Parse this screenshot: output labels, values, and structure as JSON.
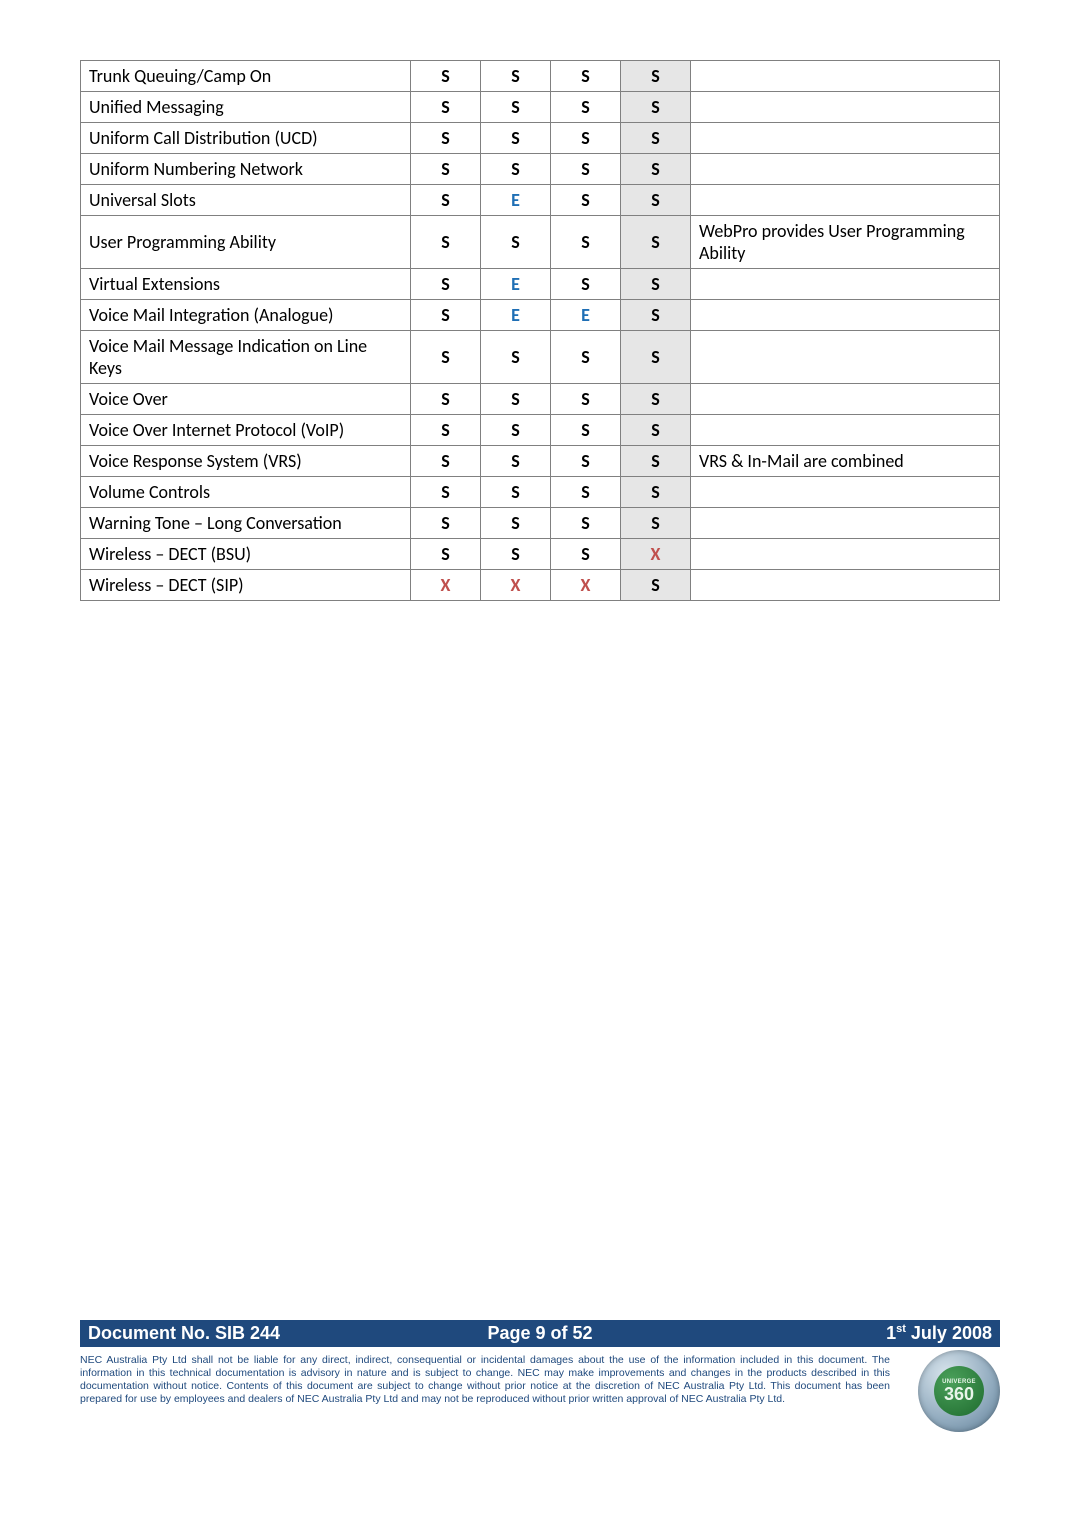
{
  "table": {
    "rows": [
      {
        "label": "Trunk Queuing/Camp On",
        "c1": "S",
        "c2": "S",
        "c3": "S",
        "c4": "S",
        "notes": ""
      },
      {
        "label": "Unified Messaging",
        "c1": "S",
        "c2": "S",
        "c3": "S",
        "c4": "S",
        "notes": ""
      },
      {
        "label": "Uniform Call Distribution (UCD)",
        "c1": "S",
        "c2": "S",
        "c3": "S",
        "c4": "S",
        "notes": ""
      },
      {
        "label": "Uniform Numbering Network",
        "c1": "S",
        "c2": "S",
        "c3": "S",
        "c4": "S",
        "notes": ""
      },
      {
        "label": "Universal Slots",
        "c1": "S",
        "c2": "E",
        "c3": "S",
        "c4": "S",
        "notes": ""
      },
      {
        "label": "User Programming Ability",
        "c1": "S",
        "c2": "S",
        "c3": "S",
        "c4": "S",
        "notes": "WebPro provides User Programming Ability"
      },
      {
        "label": "Virtual Extensions",
        "c1": "S",
        "c2": "E",
        "c3": "S",
        "c4": "S",
        "notes": ""
      },
      {
        "label": "Voice Mail Integration (Analogue)",
        "c1": "S",
        "c2": "E",
        "c3": "E",
        "c4": "S",
        "notes": ""
      },
      {
        "label": "Voice Mail Message Indication on Line Keys",
        "c1": "S",
        "c2": "S",
        "c3": "S",
        "c4": "S",
        "notes": ""
      },
      {
        "label": "Voice Over",
        "c1": "S",
        "c2": "S",
        "c3": "S",
        "c4": "S",
        "notes": ""
      },
      {
        "label": "Voice Over Internet Protocol (VoIP)",
        "c1": "S",
        "c2": "S",
        "c3": "S",
        "c4": "S",
        "notes": ""
      },
      {
        "label": "Voice Response System (VRS)",
        "c1": "S",
        "c2": "S",
        "c3": "S",
        "c4": "S",
        "notes": "VRS & In-Mail are combined"
      },
      {
        "label": "Volume Controls",
        "c1": "S",
        "c2": "S",
        "c3": "S",
        "c4": "S",
        "notes": ""
      },
      {
        "label": "Warning Tone – Long Conversation",
        "c1": "S",
        "c2": "S",
        "c3": "S",
        "c4": "S",
        "notes": ""
      },
      {
        "label": "Wireless – DECT (BSU)",
        "c1": "S",
        "c2": "S",
        "c3": "S",
        "c4": "X",
        "notes": ""
      },
      {
        "label": "Wireless – DECT (SIP)",
        "c1": "X",
        "c2": "X",
        "c3": "X",
        "c4": "S",
        "notes": ""
      }
    ],
    "value_colors": {
      "S": "#000000",
      "E": "#1f6fb5",
      "X": "#c0504d"
    }
  },
  "footer": {
    "docno": "Document No. SIB 244",
    "page": "Page 9 of 52",
    "date_prefix": "1",
    "date_sup": "st",
    "date_suffix": " July 2008",
    "bar_bg": "#1f497d"
  },
  "disclaimer": "NEC Australia Pty Ltd shall not be liable for any direct, indirect, consequential or incidental damages about the use of the information included in this document. The information in this technical documentation is advisory in nature and is subject to change.  NEC may make improvements and changes in the products described in this documentation without notice.  Contents of this document are subject to change without prior notice at the discretion of NEC Australia Pty Ltd. This document has been prepared for use by employees and dealers of NEC Australia Pty Ltd and may not be reproduced without prior written approval of NEC Australia Pty Ltd.",
  "badge": {
    "top": "UNIVERGE",
    "num": "360"
  }
}
